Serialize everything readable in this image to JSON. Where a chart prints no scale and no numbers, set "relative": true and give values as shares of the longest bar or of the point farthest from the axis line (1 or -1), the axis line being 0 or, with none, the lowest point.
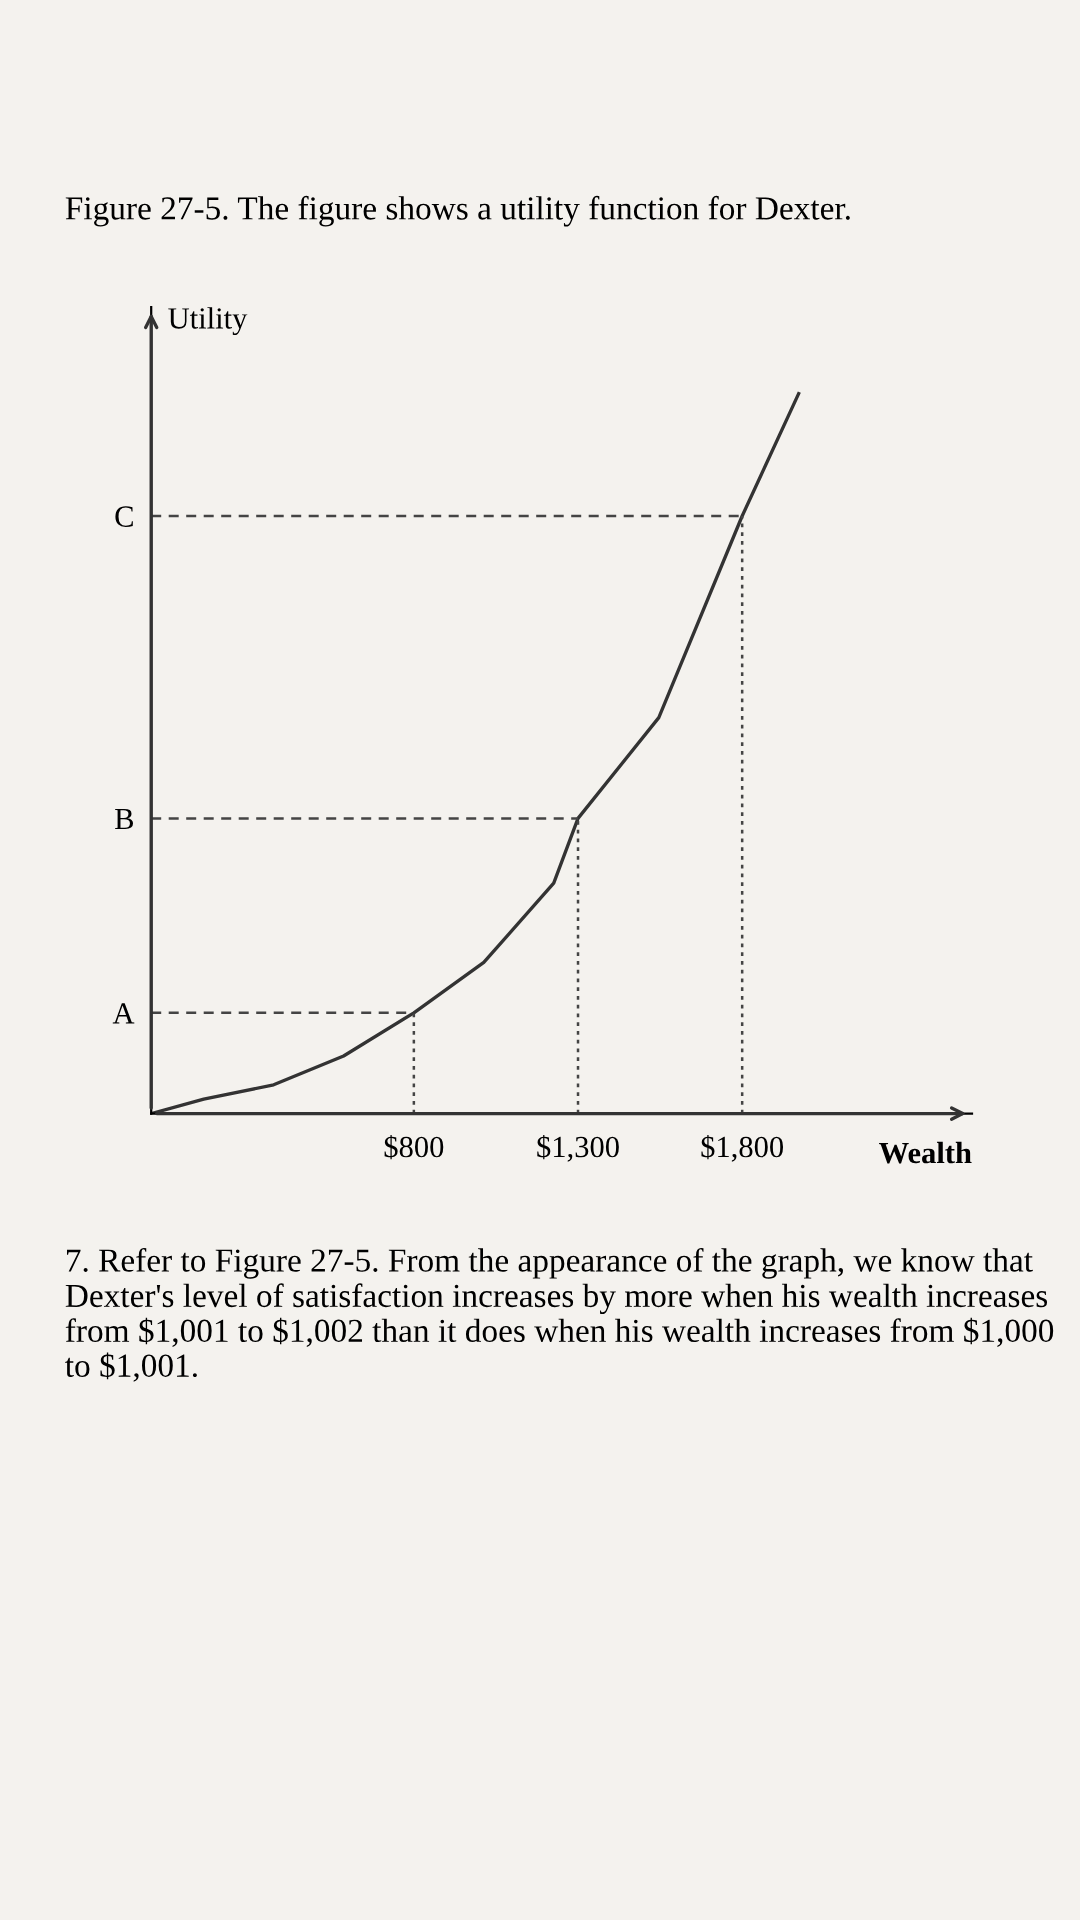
{
  "chart_data": {
    "type": "line",
    "title": "Figure 27-5. The figure shows a utility function for Dexter.",
    "xlabel": "Wealth",
    "ylabel": "Utility",
    "relative": true,
    "x": [
      0,
      160,
      373,
      586,
      800,
      1013,
      1226,
      1300,
      1546,
      1800,
      1972
    ],
    "series": [
      {
        "color": "#333333",
        "values": [
          0,
          0.02,
          0.04,
          0.08,
          0.14,
          0.21,
          0.32,
          0.41,
          0.55,
          0.83,
          1
        ]
      }
    ],
    "xlim": [
      0,
      2500
    ],
    "xticks": [
      {
        "value": 800,
        "label": "$800"
      },
      {
        "value": 1300,
        "label": "$1,300"
      },
      {
        "value": 1800,
        "label": "$1,800"
      }
    ],
    "ref_lines": [
      {
        "axis": "y",
        "value": 0.14,
        "label": "A",
        "line_style": "dashed"
      },
      {
        "axis": "y",
        "value": 0.41,
        "label": "B",
        "line_style": "dashed"
      },
      {
        "axis": "y",
        "value": 0.83,
        "label": "C",
        "line_style": "dashed"
      },
      {
        "axis": "x",
        "value": 800,
        "line_style": "dotted"
      },
      {
        "axis": "x",
        "value": 1300,
        "line_style": "dotted"
      },
      {
        "axis": "x",
        "value": 1800,
        "line_style": "dotted"
      }
    ],
    "annotations": [
      "7. Refer to Figure 27-5. From the appearance of the graph, we know that Dexter's level of satisfaction increases by more when his wealth increases from $1,001 to $1,002 than it does when his wealth increases from $1,000 to $1,001."
    ],
    "grid": false,
    "legend": false,
    "marker": "none",
    "line_style": "solid"
  }
}
